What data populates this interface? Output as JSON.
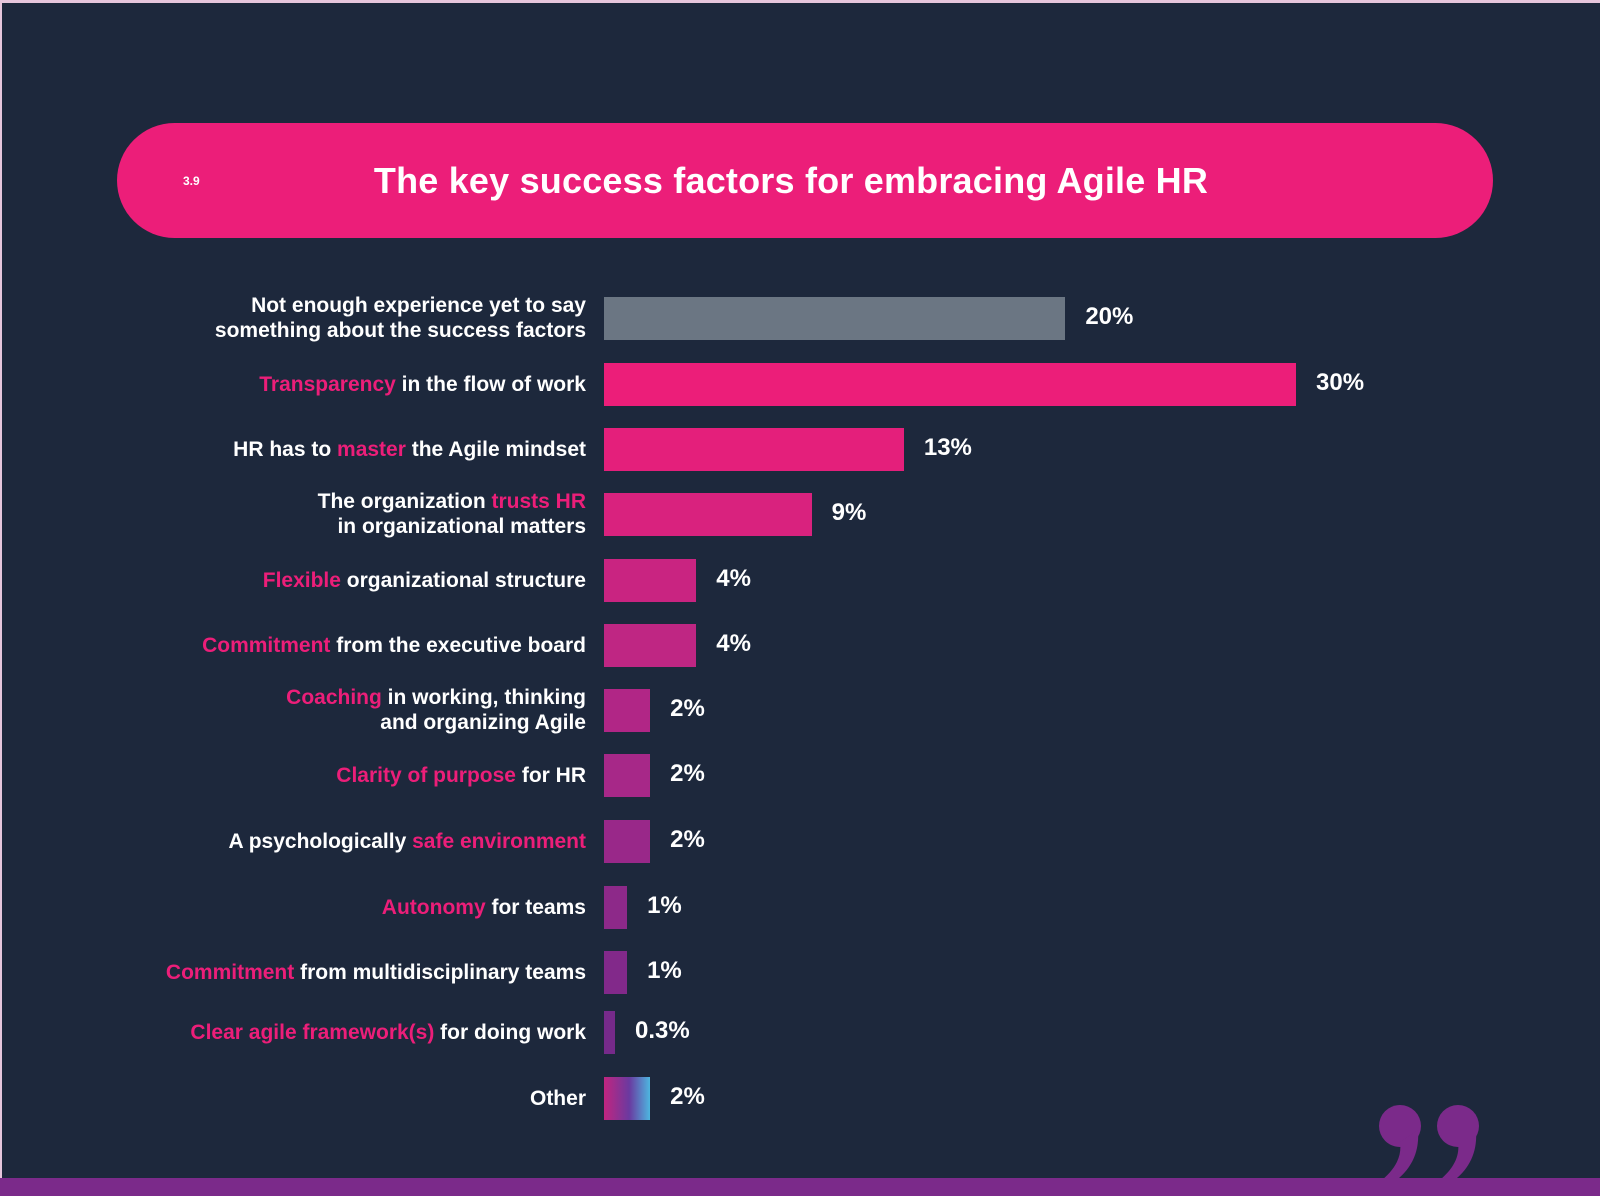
{
  "header": {
    "section_number": "3.9",
    "title": "The key success factors for embracing Agile HR"
  },
  "colors": {
    "background": "#1d283c",
    "accent": "#ec1e79",
    "neutral_bar": "#6b7683",
    "purple": "#7b2a8a"
  },
  "decor": {
    "quote_icon": "closing-quote-icon"
  },
  "chart_data": {
    "type": "bar",
    "orientation": "horizontal",
    "title": "The key success factors for embracing Agile HR",
    "unit": "%",
    "grid": false,
    "categories": [
      "Not enough experience yet to say something about the success factors",
      "Transparency in the flow of work",
      "HR has to master the Agile mindset",
      "The organization trusts HR in organizational matters",
      "Flexible organizational structure",
      "Commitment from the executive board",
      "Coaching in working, thinking and organizing Agile",
      "Clarity of purpose for HR",
      "A psychologically safe environment",
      "Autonomy for teams",
      "Commitment from multidisciplinary teams",
      "Clear agile framework(s) for doing work",
      "Other"
    ],
    "values": [
      20,
      30,
      13,
      9,
      4,
      4,
      2,
      2,
      2,
      1,
      1,
      0.3,
      2
    ],
    "value_labels": [
      "20%",
      "30%",
      "13%",
      "9%",
      "4%",
      "4%",
      "2%",
      "2%",
      "2%",
      "1%",
      "1%",
      "0.3%",
      "2%"
    ],
    "bar_colors": [
      "#6b7683",
      "#ec1e79",
      "#e41f7b",
      "#d9227e",
      "#c92481",
      "#bf2683",
      "#b12686",
      "#a72888",
      "#992889",
      "#8d2989",
      "#82298a",
      "#762a8a",
      "gradient"
    ],
    "label_parts": [
      [
        {
          "t": "Not enough experience yet to say",
          "h": false
        },
        {
          "br": true
        },
        {
          "t": "something about the success factors",
          "h": false
        }
      ],
      [
        {
          "t": "Transparency",
          "h": true
        },
        {
          "t": " in the flow of work",
          "h": false
        }
      ],
      [
        {
          "t": "HR has to ",
          "h": false
        },
        {
          "t": "master",
          "h": true
        },
        {
          "t": " the Agile mindset",
          "h": false
        }
      ],
      [
        {
          "t": "The organization ",
          "h": false
        },
        {
          "t": "trusts HR",
          "h": true
        },
        {
          "br": true
        },
        {
          "t": "in organizational matters",
          "h": false
        }
      ],
      [
        {
          "t": "Flexible",
          "h": true
        },
        {
          "t": " organizational structure",
          "h": false
        }
      ],
      [
        {
          "t": "Commitment",
          "h": true
        },
        {
          "t": " from the executive board",
          "h": false
        }
      ],
      [
        {
          "t": "Coaching",
          "h": true
        },
        {
          "t": " in working, thinking",
          "h": false
        },
        {
          "br": true
        },
        {
          "t": "and organizing Agile",
          "h": false
        }
      ],
      [
        {
          "t": "Clarity of purpose",
          "h": true
        },
        {
          "t": " for HR",
          "h": false
        }
      ],
      [
        {
          "t": "A psychologically ",
          "h": false
        },
        {
          "t": "safe environment",
          "h": true
        }
      ],
      [
        {
          "t": "Autonomy",
          "h": true
        },
        {
          "t": " for teams",
          "h": false
        }
      ],
      [
        {
          "t": "Commitment",
          "h": true
        },
        {
          "t": " from multidisciplinary teams",
          "h": false
        }
      ],
      [
        {
          "t": "Clear agile framework(s)",
          "h": true
        },
        {
          "t": " for doing work",
          "h": false
        }
      ],
      [
        {
          "t": "Other",
          "h": false
        }
      ]
    ]
  }
}
